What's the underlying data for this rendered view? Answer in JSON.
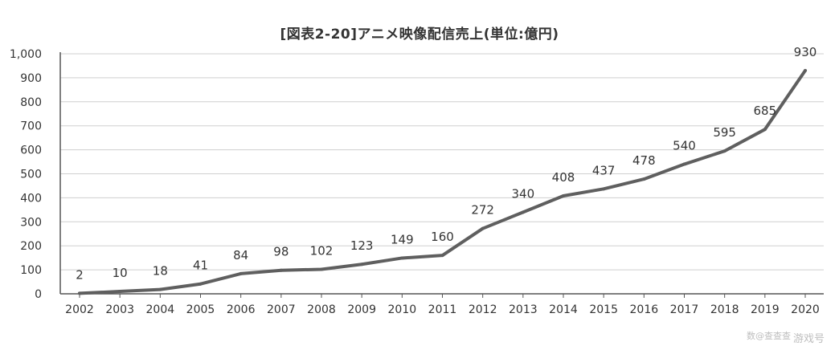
{
  "chart_data": {
    "type": "line",
    "title": "[図表2-20]アニメ映像配信売上(単位:億円)",
    "categories": [
      "2002",
      "2003",
      "2004",
      "2005",
      "2006",
      "2007",
      "2008",
      "2009",
      "2010",
      "2011",
      "2012",
      "2013",
      "2014",
      "2015",
      "2016",
      "2017",
      "2018",
      "2019",
      "2020"
    ],
    "series": [
      {
        "values": [
          2,
          10,
          18,
          41,
          84,
          98,
          102,
          123,
          149,
          160,
          272,
          340,
          408,
          437,
          478,
          540,
          595,
          685,
          930
        ]
      }
    ],
    "ylim": [
      0,
      1000
    ],
    "yticks": [
      0,
      100,
      200,
      300,
      400,
      500,
      600,
      700,
      800,
      900,
      1000
    ],
    "ytick_labels": [
      "0",
      "100",
      "200",
      "300",
      "400",
      "500",
      "600",
      "700",
      "800",
      "900",
      "1,000"
    ],
    "grid": true,
    "data_labels": true,
    "line_color": "#5f5f5f",
    "grid_color": "#cfcfcf",
    "axis_color": "#555555",
    "text_color": "#333333"
  },
  "watermark": {
    "text": "游戏号",
    "source": "数@查查查"
  }
}
